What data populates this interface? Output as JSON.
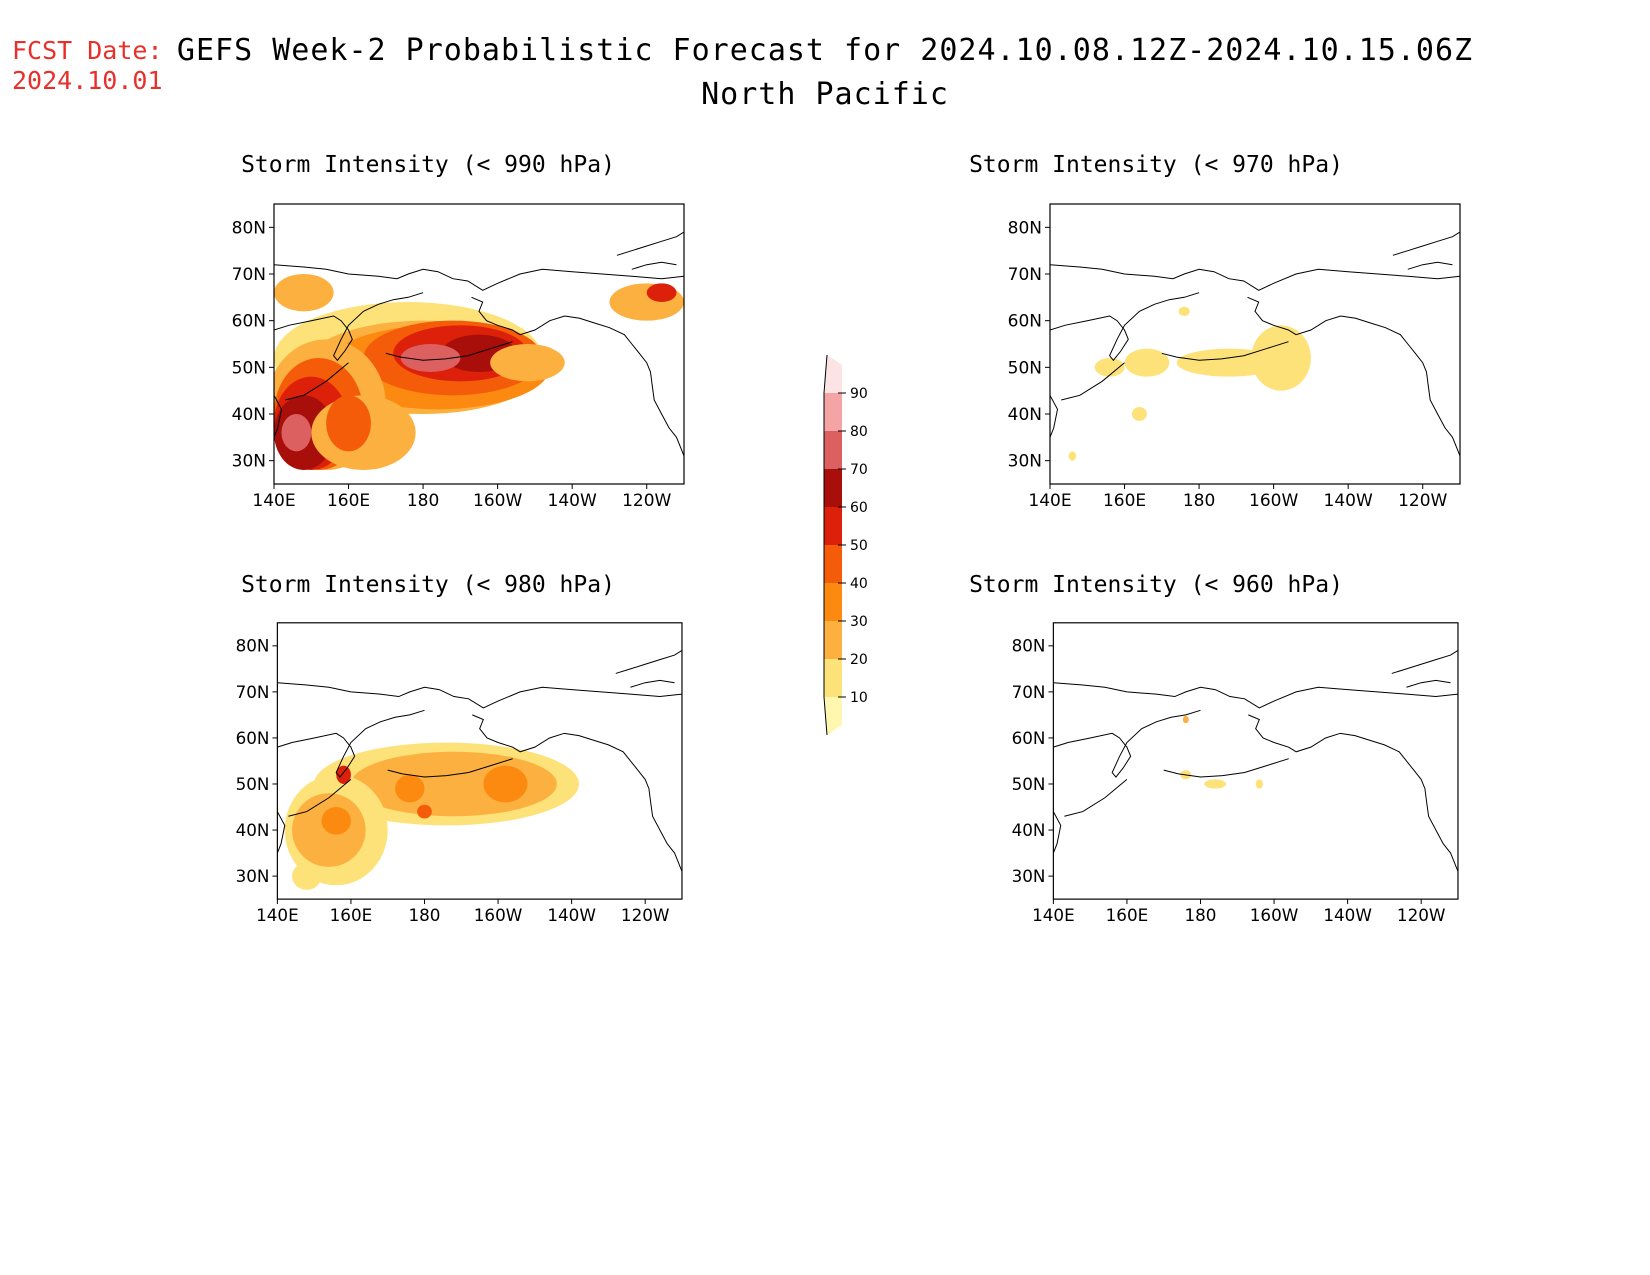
{
  "header": {
    "fcst_label": "FCST Date:",
    "fcst_date": "2024.10.01",
    "title_line1": "GEFS Week-2 Probabilistic Forecast for 2024.10.08.12Z-2024.10.15.06Z",
    "title_line2": "North Pacific"
  },
  "axes": {
    "lon_ticks": [
      "140E",
      "160E",
      "180",
      "160W",
      "140W",
      "120W"
    ],
    "lat_ticks": [
      "30N",
      "40N",
      "50N",
      "60N",
      "70N",
      "80N"
    ]
  },
  "panels": [
    {
      "id": "p990",
      "title": "Storm Intensity (< 990 hPa)",
      "threshold_hpa": 990,
      "coverage": "extensive"
    },
    {
      "id": "p970",
      "title": "Storm Intensity (< 970 hPa)",
      "threshold_hpa": 970,
      "coverage": "sparse"
    },
    {
      "id": "p980",
      "title": "Storm Intensity (< 980 hPa)",
      "threshold_hpa": 980,
      "coverage": "moderate"
    },
    {
      "id": "p960",
      "title": "Storm Intensity (< 960 hPa)",
      "threshold_hpa": 960,
      "coverage": "minimal"
    }
  ],
  "colorbar": {
    "levels": [
      "10",
      "20",
      "30",
      "40",
      "50",
      "60",
      "70",
      "80",
      "90"
    ],
    "colors": [
      "#fff7b0",
      "#fde27a",
      "#fcb040",
      "#fc8a10",
      "#f45c0a",
      "#dc200a",
      "#a80e0a",
      "#dc6060",
      "#f4a4a4",
      "#fde4e4"
    ]
  }
}
